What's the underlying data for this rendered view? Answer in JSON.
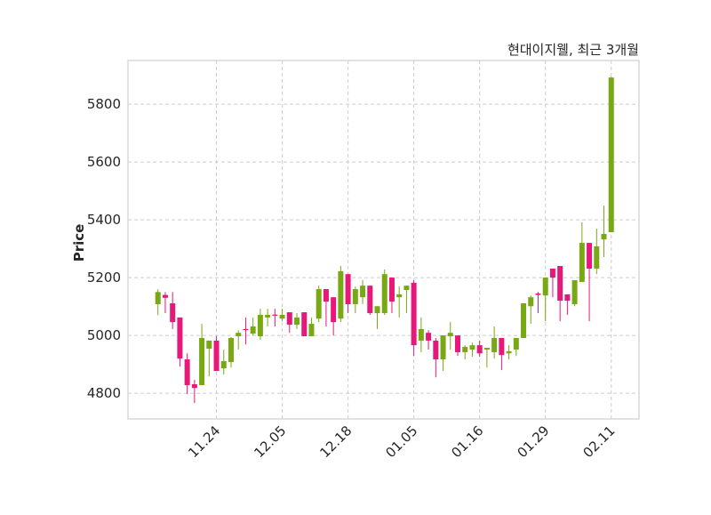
{
  "chart_data": {
    "type": "candlestick",
    "title": "현대이지웰, 최근 3개월",
    "xlabel": "",
    "ylabel": "Price",
    "ylim": [
      4711,
      5951
    ],
    "xlim": [
      -4.1,
      65.8
    ],
    "grid": true,
    "yticks": [
      4800,
      5000,
      5200,
      5400,
      5600,
      5800
    ],
    "xticks": [
      {
        "index": 8,
        "label": "11.24"
      },
      {
        "index": 17,
        "label": "12.05"
      },
      {
        "index": 26,
        "label": "12.18"
      },
      {
        "index": 35,
        "label": "01.05"
      },
      {
        "index": 44,
        "label": "01.16"
      },
      {
        "index": 53,
        "label": "01.29"
      },
      {
        "index": 62,
        "label": "02.11"
      }
    ],
    "colors": {
      "up": "#78a814",
      "down": "#e8177a",
      "grid": "#cccccc",
      "frame": "#d9d9d9"
    },
    "ohlc": [
      [
        5108,
        5160,
        5070,
        5150
      ],
      [
        5140,
        5150,
        5077,
        5130
      ],
      [
        5111,
        5150,
        5022,
        5046
      ],
      [
        5062,
        5062,
        4892,
        4920
      ],
      [
        4917,
        4938,
        4797,
        4828
      ],
      [
        4831,
        4846,
        4766,
        4818
      ],
      [
        4828,
        5040,
        4828,
        4991
      ],
      [
        4954,
        4982,
        4858,
        4982
      ],
      [
        4982,
        4997,
        4877,
        4877
      ],
      [
        4886,
        4951,
        4865,
        4911
      ],
      [
        4908,
        4994,
        4889,
        4991
      ],
      [
        4997,
        5018,
        4951,
        5009
      ],
      [
        5022,
        5062,
        4969,
        5020
      ],
      [
        5006,
        5062,
        5000,
        5031
      ],
      [
        4997,
        5092,
        4985,
        5071
      ],
      [
        5062,
        5092,
        5031,
        5071
      ],
      [
        5072,
        5092,
        5031,
        5070
      ],
      [
        5058,
        5092,
        5049,
        5071
      ],
      [
        5080,
        5080,
        5009,
        5037
      ],
      [
        5037,
        5077,
        5022,
        5062
      ],
      [
        5080,
        5080,
        4997,
        4997
      ],
      [
        4997,
        5062,
        4997,
        5040
      ],
      [
        5058,
        5172,
        5046,
        5160
      ],
      [
        5160,
        5160,
        5031,
        5117
      ],
      [
        5132,
        5132,
        5000,
        5046
      ],
      [
        5058,
        5240,
        5046,
        5222
      ],
      [
        5212,
        5212,
        5077,
        5108
      ],
      [
        5108,
        5169,
        5077,
        5160
      ],
      [
        5132,
        5191,
        5108,
        5172
      ],
      [
        5172,
        5172,
        5071,
        5077
      ],
      [
        5077,
        5101,
        5022,
        5101
      ],
      [
        5077,
        5228,
        5071,
        5212
      ],
      [
        5200,
        5200,
        5077,
        5117
      ],
      [
        5132,
        5169,
        5062,
        5142
      ],
      [
        5157,
        5172,
        5077,
        5172
      ],
      [
        5182,
        5191,
        4929,
        4966
      ],
      [
        4982,
        5062,
        4942,
        5022
      ],
      [
        5009,
        5018,
        4951,
        4982
      ],
      [
        4982,
        4991,
        4855,
        4917
      ],
      [
        4917,
        5000,
        4877,
        5000
      ],
      [
        4997,
        5046,
        4951,
        5009
      ],
      [
        5000,
        5000,
        4929,
        4942
      ],
      [
        4942,
        4966,
        4917,
        4960
      ],
      [
        4951,
        4975,
        4926,
        4966
      ],
      [
        4966,
        4982,
        4926,
        4938
      ],
      [
        4951,
        4957,
        4889,
        4957
      ],
      [
        4942,
        5031,
        4920,
        4991
      ],
      [
        4991,
        4991,
        4880,
        4932
      ],
      [
        4938,
        4966,
        4917,
        4945
      ],
      [
        4951,
        4991,
        4929,
        4991
      ],
      [
        4991,
        5111,
        4991,
        5111
      ],
      [
        5101,
        5138,
        5040,
        5132
      ],
      [
        5145,
        5150,
        5077,
        5140
      ],
      [
        5138,
        5200,
        5049,
        5200
      ],
      [
        5231,
        5231,
        5132,
        5200
      ],
      [
        5240,
        5240,
        5049,
        5120
      ],
      [
        5142,
        5142,
        5071,
        5120
      ],
      [
        5108,
        5191,
        5101,
        5191
      ],
      [
        5185,
        5391,
        5185,
        5320
      ],
      [
        5320,
        5320,
        5049,
        5231
      ],
      [
        5231,
        5369,
        5212,
        5308
      ],
      [
        5332,
        5449,
        5271,
        5351
      ],
      [
        5357,
        5895,
        5357,
        5892
      ]
    ]
  }
}
